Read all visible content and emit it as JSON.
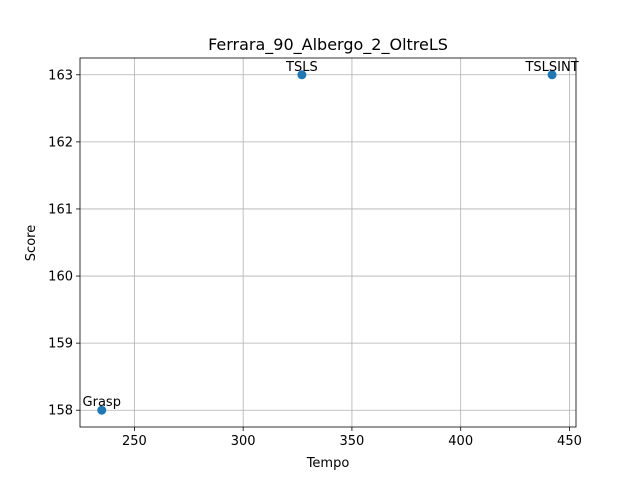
{
  "chart_data": {
    "type": "scatter",
    "title": "Ferrara_90_Albergo_2_OltreLS",
    "xlabel": "Tempo",
    "ylabel": "Score",
    "xlim": [
      225,
      453
    ],
    "ylim": [
      157.75,
      163.25
    ],
    "xticks": [
      250,
      300,
      350,
      400,
      450
    ],
    "yticks": [
      158,
      159,
      160,
      161,
      162,
      163
    ],
    "grid": true,
    "marker_color": "#1f77b4",
    "points": [
      {
        "label": "Grasp",
        "x": 235,
        "y": 158
      },
      {
        "label": "TSLS",
        "x": 327,
        "y": 163
      },
      {
        "label": "TSLSINT",
        "x": 442,
        "y": 163
      }
    ]
  }
}
